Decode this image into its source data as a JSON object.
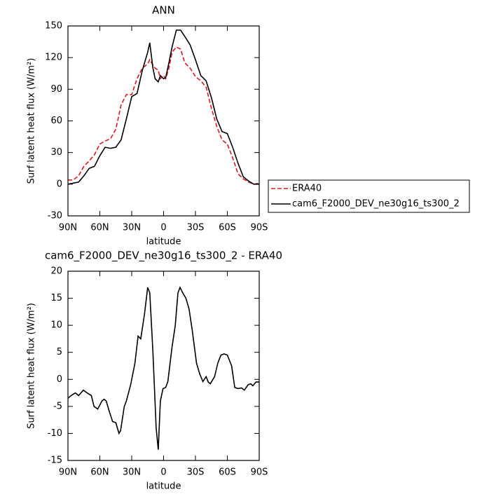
{
  "chart_data": [
    {
      "type": "line",
      "title": "ANN",
      "x_label": "latitude",
      "y_label": "Surf latent heat flux (W/m²)",
      "x": [
        90,
        85,
        80,
        75,
        70,
        65,
        60,
        55,
        50,
        45,
        40,
        35,
        30,
        25,
        20,
        15,
        13,
        10,
        8,
        5,
        3,
        0,
        -2,
        -5,
        -8,
        -12,
        -16,
        -20,
        -25,
        -30,
        -35,
        -40,
        -45,
        -50,
        -55,
        -60,
        -65,
        -70,
        -75,
        -80,
        -85,
        -90
      ],
      "series": [
        {
          "name": "ERA40",
          "color": "#e0191d",
          "style": "dashed",
          "values": [
            4,
            4,
            8,
            17,
            22,
            28,
            38,
            41,
            43,
            52,
            75,
            85,
            85,
            100,
            110,
            114,
            118,
            113,
            110,
            108,
            100,
            103,
            100,
            110,
            125,
            130,
            128,
            115,
            110,
            102,
            98,
            92,
            72,
            55,
            42,
            38,
            25,
            10,
            5,
            2,
            0,
            1
          ]
        },
        {
          "name": "cam6_F2000_DEV_ne30g16_ts300_2",
          "color": "#000000",
          "style": "solid",
          "values": [
            0,
            1,
            2,
            8,
            15,
            17,
            27,
            35,
            34,
            35,
            42,
            62,
            83,
            86,
            108,
            125,
            134,
            110,
            100,
            97,
            103,
            100,
            101,
            115,
            130,
            146,
            146,
            140,
            132,
            118,
            103,
            98,
            82,
            62,
            50,
            48,
            35,
            20,
            7,
            3,
            0,
            0
          ]
        }
      ],
      "xlim": [
        90,
        -90
      ],
      "xticks": [
        {
          "value": 90,
          "label": "90N"
        },
        {
          "value": 60,
          "label": "60N"
        },
        {
          "value": 30,
          "label": "30N"
        },
        0,
        {
          "value": -30,
          "label": "30S"
        },
        {
          "value": -60,
          "label": "60S"
        },
        {
          "value": -90,
          "label": "90S"
        }
      ],
      "ylim": [
        -30,
        150
      ],
      "yticks": [
        -30,
        0,
        30,
        60,
        90,
        120,
        150
      ],
      "legend": "right"
    },
    {
      "type": "line",
      "title": "cam6_F2000_DEV_ne30g16_ts300_2 - ERA40",
      "x_label": "latitude",
      "y_label": "Surf latent heat flux (W/m²)",
      "x": [
        90,
        87,
        83,
        80,
        75.5,
        72,
        68,
        65.5,
        62,
        58,
        56,
        54,
        51,
        48,
        45,
        42,
        40.5,
        37,
        35,
        31,
        27,
        24,
        21.5,
        18,
        15,
        13,
        10,
        7,
        5,
        3,
        0.5,
        -2,
        -4,
        -8,
        -11,
        -13.5,
        -15.5,
        -18,
        -21,
        -24,
        -27,
        -31,
        -34,
        -37,
        -40,
        -42,
        -44,
        -48,
        -51,
        -54,
        -57,
        -60,
        -64,
        -67,
        -70,
        -73.5,
        -76,
        -79.5,
        -82,
        -84,
        -87,
        -90
      ],
      "series": [
        {
          "color": "#000000",
          "style": "solid",
          "values": [
            -3.5,
            -3,
            -2.5,
            -3,
            -2,
            -2.5,
            -3,
            -5,
            -5.5,
            -4,
            -3.7,
            -4,
            -6,
            -7.8,
            -8,
            -10,
            -9.5,
            -5,
            -4,
            -1,
            3,
            8,
            7.5,
            12,
            17,
            16,
            5,
            -9,
            -13,
            -4,
            -1.7,
            -1.5,
            -0.4,
            6,
            10,
            16,
            17,
            16,
            15,
            13,
            9,
            3,
            1,
            -0.4,
            0.5,
            -0.5,
            -0.8,
            0.5,
            3,
            4.5,
            4.7,
            4.5,
            2.5,
            -1.5,
            -1.7,
            -1.6,
            -2,
            -1,
            -0.8,
            -1.2,
            -0.5,
            -0.5
          ]
        }
      ],
      "xlim": [
        90,
        -90
      ],
      "xticks": [
        {
          "value": 90,
          "label": "90N"
        },
        {
          "value": 60,
          "label": "60N"
        },
        {
          "value": 30,
          "label": "30N"
        },
        0,
        {
          "value": -30,
          "label": "30S"
        },
        {
          "value": -60,
          "label": "60S"
        },
        {
          "value": -90,
          "label": "90S"
        }
      ],
      "ylim": [
        -15,
        20
      ],
      "yticks": [
        -15,
        -10,
        -5,
        0,
        5,
        10,
        15,
        20
      ]
    }
  ]
}
